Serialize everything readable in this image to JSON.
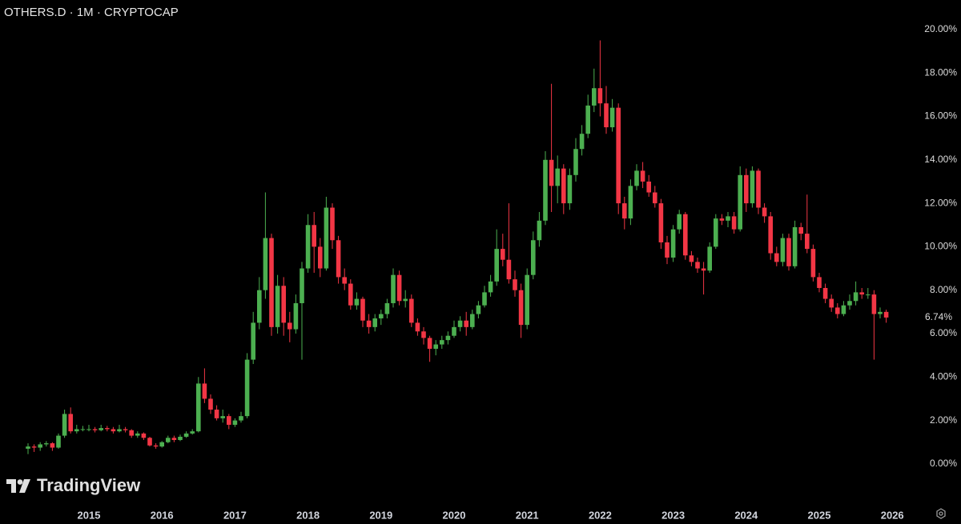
{
  "chart_data": {
    "type": "candlestick",
    "title": "OTHERS.D · 1M · CRYPTOCAP",
    "watermark": "TradingView",
    "up_color": "#4caf50",
    "down_color": "#f23645",
    "grid": false,
    "ylim": [
      -1.92,
      21.36
    ],
    "yticks": [
      {
        "value": 0,
        "label": "0.00%"
      },
      {
        "value": 2,
        "label": "2.00%"
      },
      {
        "value": 4,
        "label": "4.00%"
      },
      {
        "value": 6,
        "label": "6.00%"
      },
      {
        "value": 8,
        "label": "8.00%"
      },
      {
        "value": 10,
        "label": "10.00%"
      },
      {
        "value": 12,
        "label": "12.00%"
      },
      {
        "value": 14,
        "label": "14.00%"
      },
      {
        "value": 16,
        "label": "16.00%"
      },
      {
        "value": 18,
        "label": "18.00%"
      },
      {
        "value": 20,
        "label": "20.00%"
      }
    ],
    "last_price": {
      "value": 6.74,
      "label": "6.74%"
    },
    "categories": [
      null,
      null,
      null,
      null,
      null,
      null,
      null,
      null,
      null,
      null,
      "2015",
      null,
      null,
      null,
      null,
      null,
      null,
      null,
      null,
      null,
      null,
      null,
      "2016",
      null,
      null,
      null,
      null,
      null,
      null,
      null,
      null,
      null,
      null,
      null,
      "2017",
      null,
      null,
      null,
      null,
      null,
      null,
      null,
      null,
      null,
      null,
      null,
      "2018",
      null,
      null,
      null,
      null,
      null,
      null,
      null,
      null,
      null,
      null,
      null,
      "2019",
      null,
      null,
      null,
      null,
      null,
      null,
      null,
      null,
      null,
      null,
      null,
      "2020",
      null,
      null,
      null,
      null,
      null,
      null,
      null,
      null,
      null,
      null,
      null,
      "2021",
      null,
      null,
      null,
      null,
      null,
      null,
      null,
      null,
      null,
      null,
      null,
      "2022",
      null,
      null,
      null,
      null,
      null,
      null,
      null,
      null,
      null,
      null,
      null,
      "2023",
      null,
      null,
      null,
      null,
      null,
      null,
      null,
      null,
      null,
      null,
      null,
      "2024",
      null,
      null,
      null,
      null,
      null,
      null,
      null,
      null,
      null,
      null,
      null,
      "2025",
      null,
      null,
      null,
      null,
      null,
      null,
      null,
      null,
      null,
      null,
      null,
      "2026"
    ],
    "ohlc": [
      [
        0.7,
        0.95,
        0.45,
        0.8
      ],
      [
        0.8,
        0.9,
        0.55,
        0.75
      ],
      [
        0.75,
        1.0,
        0.6,
        0.9
      ],
      [
        0.9,
        1.05,
        0.8,
        0.95
      ],
      [
        0.95,
        1.0,
        0.6,
        0.75
      ],
      [
        0.75,
        1.4,
        0.7,
        1.3
      ],
      [
        1.3,
        2.5,
        1.2,
        2.3
      ],
      [
        2.3,
        2.6,
        1.4,
        1.5
      ],
      [
        1.5,
        1.8,
        1.4,
        1.6
      ],
      [
        1.6,
        1.75,
        1.5,
        1.6
      ],
      [
        1.6,
        1.8,
        1.5,
        1.6
      ],
      [
        1.6,
        1.7,
        1.45,
        1.55
      ],
      [
        1.55,
        1.8,
        1.5,
        1.65
      ],
      [
        1.65,
        1.75,
        1.5,
        1.6
      ],
      [
        1.6,
        1.7,
        1.4,
        1.5
      ],
      [
        1.5,
        1.8,
        1.45,
        1.6
      ],
      [
        1.6,
        1.7,
        1.45,
        1.55
      ],
      [
        1.55,
        1.6,
        1.2,
        1.3
      ],
      [
        1.3,
        1.5,
        1.2,
        1.4
      ],
      [
        1.4,
        1.45,
        1.1,
        1.2
      ],
      [
        1.2,
        1.25,
        0.8,
        0.85
      ],
      [
        0.85,
        0.95,
        0.7,
        0.8
      ],
      [
        0.8,
        1.05,
        0.75,
        1.0
      ],
      [
        1.0,
        1.3,
        0.95,
        1.2
      ],
      [
        1.2,
        1.3,
        1.0,
        1.1
      ],
      [
        1.1,
        1.35,
        1.05,
        1.25
      ],
      [
        1.25,
        1.5,
        1.2,
        1.4
      ],
      [
        1.4,
        1.6,
        1.35,
        1.5
      ],
      [
        1.5,
        4.0,
        1.45,
        3.7
      ],
      [
        3.7,
        4.4,
        2.8,
        3.0
      ],
      [
        3.0,
        3.2,
        2.3,
        2.5
      ],
      [
        2.5,
        2.7,
        2.0,
        2.1
      ],
      [
        2.1,
        2.5,
        1.9,
        2.2
      ],
      [
        2.2,
        2.3,
        1.6,
        1.8
      ],
      [
        1.8,
        2.1,
        1.7,
        2.0
      ],
      [
        2.0,
        2.4,
        1.9,
        2.2
      ],
      [
        2.2,
        5.1,
        2.1,
        4.8
      ],
      [
        4.8,
        7.0,
        4.6,
        6.5
      ],
      [
        6.5,
        8.6,
        6.2,
        8.0
      ],
      [
        8.0,
        12.5,
        7.6,
        10.4
      ],
      [
        10.4,
        10.6,
        5.9,
        6.3
      ],
      [
        6.3,
        8.7,
        6.0,
        8.2
      ],
      [
        8.2,
        8.6,
        5.9,
        6.5
      ],
      [
        6.5,
        7.0,
        5.6,
        6.2
      ],
      [
        6.2,
        7.8,
        6.0,
        7.4
      ],
      [
        7.4,
        9.3,
        4.8,
        9.0
      ],
      [
        9.0,
        11.5,
        8.8,
        11.0
      ],
      [
        11.0,
        11.6,
        8.8,
        10.0
      ],
      [
        10.0,
        10.4,
        8.6,
        9.0
      ],
      [
        9.0,
        12.3,
        8.9,
        11.8
      ],
      [
        11.8,
        12.0,
        9.9,
        10.3
      ],
      [
        10.3,
        10.5,
        8.3,
        8.6
      ],
      [
        8.6,
        9.0,
        8.0,
        8.3
      ],
      [
        8.3,
        8.5,
        7.1,
        7.3
      ],
      [
        7.3,
        7.9,
        7.1,
        7.6
      ],
      [
        7.6,
        7.7,
        6.3,
        6.6
      ],
      [
        6.6,
        6.9,
        6.0,
        6.3
      ],
      [
        6.3,
        6.9,
        6.1,
        6.7
      ],
      [
        6.7,
        7.1,
        6.4,
        6.9
      ],
      [
        6.9,
        7.6,
        6.7,
        7.4
      ],
      [
        7.4,
        9.0,
        7.2,
        8.7
      ],
      [
        8.7,
        8.9,
        7.3,
        7.5
      ],
      [
        7.5,
        8.0,
        7.2,
        7.6
      ],
      [
        7.6,
        7.8,
        6.3,
        6.5
      ],
      [
        6.5,
        6.7,
        5.9,
        6.1
      ],
      [
        6.1,
        6.3,
        5.5,
        5.8
      ],
      [
        5.8,
        5.9,
        4.7,
        5.3
      ],
      [
        5.3,
        5.7,
        5.0,
        5.5
      ],
      [
        5.5,
        5.9,
        5.3,
        5.7
      ],
      [
        5.7,
        6.1,
        5.5,
        5.9
      ],
      [
        5.9,
        6.6,
        5.8,
        6.3
      ],
      [
        6.3,
        6.8,
        6.1,
        6.6
      ],
      [
        6.6,
        7.0,
        5.9,
        6.3
      ],
      [
        6.3,
        7.1,
        6.2,
        6.9
      ],
      [
        6.9,
        7.5,
        6.7,
        7.3
      ],
      [
        7.3,
        8.2,
        7.2,
        7.9
      ],
      [
        7.9,
        8.7,
        7.7,
        8.4
      ],
      [
        8.4,
        10.8,
        8.2,
        9.9
      ],
      [
        9.9,
        10.6,
        9.1,
        9.4
      ],
      [
        9.4,
        12.0,
        8.3,
        8.5
      ],
      [
        8.5,
        8.9,
        7.7,
        8.0
      ],
      [
        8.0,
        8.3,
        5.8,
        6.4
      ],
      [
        6.4,
        9.0,
        6.2,
        8.7
      ],
      [
        8.7,
        10.7,
        8.5,
        10.3
      ],
      [
        10.3,
        11.6,
        10.0,
        11.2
      ],
      [
        11.2,
        14.4,
        11.0,
        14.0
      ],
      [
        14.0,
        17.5,
        11.6,
        12.8
      ],
      [
        12.8,
        14.2,
        12.0,
        13.6
      ],
      [
        13.6,
        13.8,
        11.5,
        12.0
      ],
      [
        12.0,
        13.6,
        11.7,
        13.3
      ],
      [
        13.3,
        15.0,
        13.0,
        14.5
      ],
      [
        14.5,
        15.6,
        14.2,
        15.2
      ],
      [
        15.2,
        17.0,
        15.0,
        16.5
      ],
      [
        16.5,
        18.2,
        16.2,
        17.3
      ],
      [
        17.3,
        19.5,
        16.0,
        16.6
      ],
      [
        16.6,
        17.4,
        15.2,
        15.5
      ],
      [
        15.5,
        16.8,
        15.3,
        16.4
      ],
      [
        16.4,
        16.6,
        11.5,
        12.0
      ],
      [
        12.0,
        12.3,
        10.8,
        11.3
      ],
      [
        11.3,
        13.1,
        11.0,
        12.8
      ],
      [
        12.8,
        13.8,
        12.6,
        13.5
      ],
      [
        13.5,
        13.9,
        12.7,
        13.0
      ],
      [
        13.0,
        13.3,
        12.3,
        12.5
      ],
      [
        12.5,
        12.8,
        11.8,
        12.0
      ],
      [
        12.0,
        12.2,
        9.9,
        10.2
      ],
      [
        10.2,
        10.5,
        9.2,
        9.5
      ],
      [
        9.5,
        11.0,
        9.3,
        10.8
      ],
      [
        10.8,
        11.7,
        10.6,
        11.5
      ],
      [
        11.5,
        11.6,
        9.4,
        9.6
      ],
      [
        9.6,
        9.8,
        9.1,
        9.3
      ],
      [
        9.3,
        9.5,
        8.8,
        9.0
      ],
      [
        9.0,
        9.3,
        7.8,
        8.9
      ],
      [
        8.9,
        10.2,
        8.8,
        10.0
      ],
      [
        10.0,
        11.5,
        9.9,
        11.3
      ],
      [
        11.3,
        11.5,
        11.0,
        11.2
      ],
      [
        11.2,
        11.6,
        10.9,
        11.4
      ],
      [
        11.4,
        11.6,
        10.6,
        10.8
      ],
      [
        10.8,
        13.7,
        10.7,
        13.3
      ],
      [
        13.3,
        13.6,
        11.6,
        12.0
      ],
      [
        12.0,
        13.7,
        11.8,
        13.5
      ],
      [
        13.5,
        13.6,
        11.5,
        11.8
      ],
      [
        11.8,
        12.0,
        11.1,
        11.4
      ],
      [
        11.4,
        11.6,
        9.4,
        9.7
      ],
      [
        9.7,
        10.0,
        9.1,
        9.3
      ],
      [
        9.3,
        10.6,
        9.1,
        10.4
      ],
      [
        10.4,
        10.6,
        8.9,
        9.1
      ],
      [
        9.1,
        11.2,
        9.0,
        10.9
      ],
      [
        10.9,
        11.1,
        10.3,
        10.6
      ],
      [
        10.6,
        12.4,
        9.7,
        9.9
      ],
      [
        9.9,
        10.1,
        8.4,
        8.6
      ],
      [
        8.6,
        8.8,
        7.9,
        8.1
      ],
      [
        8.1,
        8.3,
        7.4,
        7.6
      ],
      [
        7.6,
        7.8,
        7.0,
        7.2
      ],
      [
        7.2,
        7.4,
        6.7,
        6.9
      ],
      [
        6.9,
        7.5,
        6.8,
        7.3
      ],
      [
        7.3,
        7.8,
        7.1,
        7.5
      ],
      [
        7.5,
        8.4,
        7.3,
        7.9
      ],
      [
        7.9,
        8.1,
        7.6,
        7.8
      ],
      [
        7.8,
        8.1,
        7.6,
        7.8
      ],
      [
        7.8,
        8.0,
        4.8,
        6.9
      ],
      [
        6.9,
        7.2,
        6.7,
        7.0
      ],
      [
        7.0,
        7.1,
        6.5,
        6.74
      ],
      null
    ]
  }
}
